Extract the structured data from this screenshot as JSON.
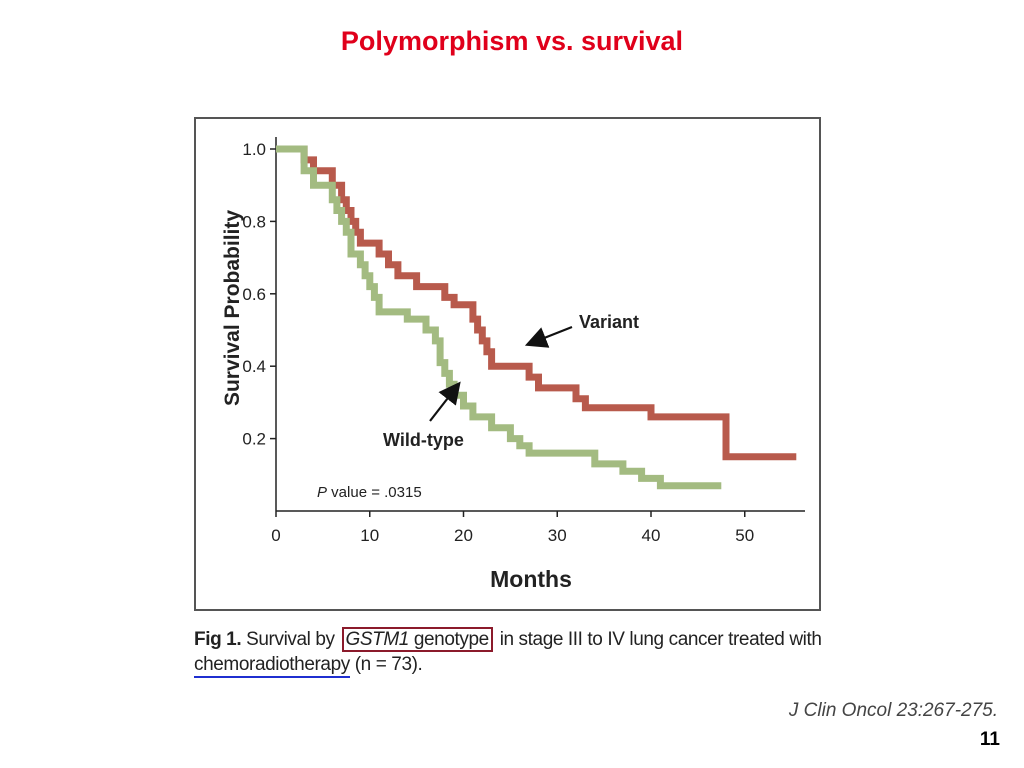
{
  "slide": {
    "title": "Polymorphism vs. survival",
    "citation": "J Clin Oncol 23:267-275.",
    "page_number": "11"
  },
  "caption": {
    "fig_label": "Fig 1.",
    "text_before_gene": " Survival by ",
    "gene": "GSTM1",
    "gene_suffix": " genotype",
    "text_after_gene": " in stage III to IV lung cancer treated with ",
    "underlined_text": "chemoradiotherapy",
    "text_end": " (n  =  73)."
  },
  "colors": {
    "title": "#e0001b",
    "variant": "#b85a4c",
    "wild_type": "#a3bb81",
    "axis": "#222222",
    "caption_box": "#8b1a2b",
    "caption_underline": "#1f2fd0"
  },
  "chart_data": {
    "type": "line",
    "step": true,
    "title": "",
    "xlabel": "Months",
    "ylabel": "Survival Probability",
    "xlim": [
      0,
      56
    ],
    "ylim": [
      0,
      1.0
    ],
    "x_ticks": [
      "0",
      "10",
      "20",
      "30",
      "40",
      "50"
    ],
    "y_ticks": [
      "0.2",
      "0.4",
      "0.6",
      "0.8",
      "1.0"
    ],
    "annotation": {
      "italic_prefix": "P",
      "text": " value = .0315"
    },
    "series": [
      {
        "name": "Variant",
        "points": [
          [
            0,
            1.0
          ],
          [
            3,
            1.0
          ],
          [
            3,
            0.97
          ],
          [
            4,
            0.97
          ],
          [
            4,
            0.94
          ],
          [
            6,
            0.94
          ],
          [
            6,
            0.9
          ],
          [
            7,
            0.9
          ],
          [
            7,
            0.86
          ],
          [
            7.5,
            0.86
          ],
          [
            7.5,
            0.83
          ],
          [
            8,
            0.83
          ],
          [
            8,
            0.8
          ],
          [
            8.5,
            0.8
          ],
          [
            8.5,
            0.77
          ],
          [
            9,
            0.77
          ],
          [
            9,
            0.74
          ],
          [
            11,
            0.74
          ],
          [
            11,
            0.71
          ],
          [
            12,
            0.71
          ],
          [
            12,
            0.68
          ],
          [
            13,
            0.68
          ],
          [
            13,
            0.65
          ],
          [
            15,
            0.65
          ],
          [
            15,
            0.62
          ],
          [
            18,
            0.62
          ],
          [
            18,
            0.59
          ],
          [
            19,
            0.59
          ],
          [
            19,
            0.57
          ],
          [
            21,
            0.57
          ],
          [
            21,
            0.53
          ],
          [
            21.5,
            0.53
          ],
          [
            21.5,
            0.5
          ],
          [
            22,
            0.5
          ],
          [
            22,
            0.47
          ],
          [
            22.5,
            0.47
          ],
          [
            22.5,
            0.44
          ],
          [
            23,
            0.44
          ],
          [
            23,
            0.4
          ],
          [
            27,
            0.4
          ],
          [
            27,
            0.37
          ],
          [
            28,
            0.37
          ],
          [
            28,
            0.34
          ],
          [
            32,
            0.34
          ],
          [
            32,
            0.31
          ],
          [
            33,
            0.31
          ],
          [
            33,
            0.285
          ],
          [
            40,
            0.285
          ],
          [
            40,
            0.26
          ],
          [
            48,
            0.26
          ],
          [
            48,
            0.15
          ],
          [
            55.5,
            0.15
          ]
        ]
      },
      {
        "name": "Wild-type",
        "points": [
          [
            0,
            1.0
          ],
          [
            3,
            1.0
          ],
          [
            3,
            0.94
          ],
          [
            4,
            0.94
          ],
          [
            4,
            0.9
          ],
          [
            6,
            0.9
          ],
          [
            6,
            0.86
          ],
          [
            6.5,
            0.86
          ],
          [
            6.5,
            0.83
          ],
          [
            7,
            0.83
          ],
          [
            7,
            0.8
          ],
          [
            7.5,
            0.8
          ],
          [
            7.5,
            0.77
          ],
          [
            8,
            0.77
          ],
          [
            8,
            0.71
          ],
          [
            9,
            0.71
          ],
          [
            9,
            0.68
          ],
          [
            9.5,
            0.68
          ],
          [
            9.5,
            0.65
          ],
          [
            10,
            0.65
          ],
          [
            10,
            0.62
          ],
          [
            10.5,
            0.62
          ],
          [
            10.5,
            0.59
          ],
          [
            11,
            0.59
          ],
          [
            11,
            0.55
          ],
          [
            14,
            0.55
          ],
          [
            14,
            0.53
          ],
          [
            16,
            0.53
          ],
          [
            16,
            0.5
          ],
          [
            17,
            0.5
          ],
          [
            17,
            0.47
          ],
          [
            17.5,
            0.47
          ],
          [
            17.5,
            0.41
          ],
          [
            18,
            0.41
          ],
          [
            18,
            0.38
          ],
          [
            18.5,
            0.38
          ],
          [
            18.5,
            0.35
          ],
          [
            19,
            0.35
          ],
          [
            19,
            0.32
          ],
          [
            20,
            0.32
          ],
          [
            20,
            0.29
          ],
          [
            21,
            0.29
          ],
          [
            21,
            0.26
          ],
          [
            23,
            0.26
          ],
          [
            23,
            0.23
          ],
          [
            25,
            0.23
          ],
          [
            25,
            0.2
          ],
          [
            26,
            0.2
          ],
          [
            26,
            0.18
          ],
          [
            27,
            0.18
          ],
          [
            27,
            0.16
          ],
          [
            34,
            0.16
          ],
          [
            34,
            0.13
          ],
          [
            37,
            0.13
          ],
          [
            37,
            0.11
          ],
          [
            39,
            0.11
          ],
          [
            39,
            0.09
          ],
          [
            41,
            0.09
          ],
          [
            41,
            0.07
          ],
          [
            47.5,
            0.07
          ]
        ]
      }
    ],
    "arrow_labels": [
      {
        "series": "Variant",
        "text": "Variant"
      },
      {
        "series": "Wild-type",
        "text": "Wild-type"
      }
    ]
  }
}
